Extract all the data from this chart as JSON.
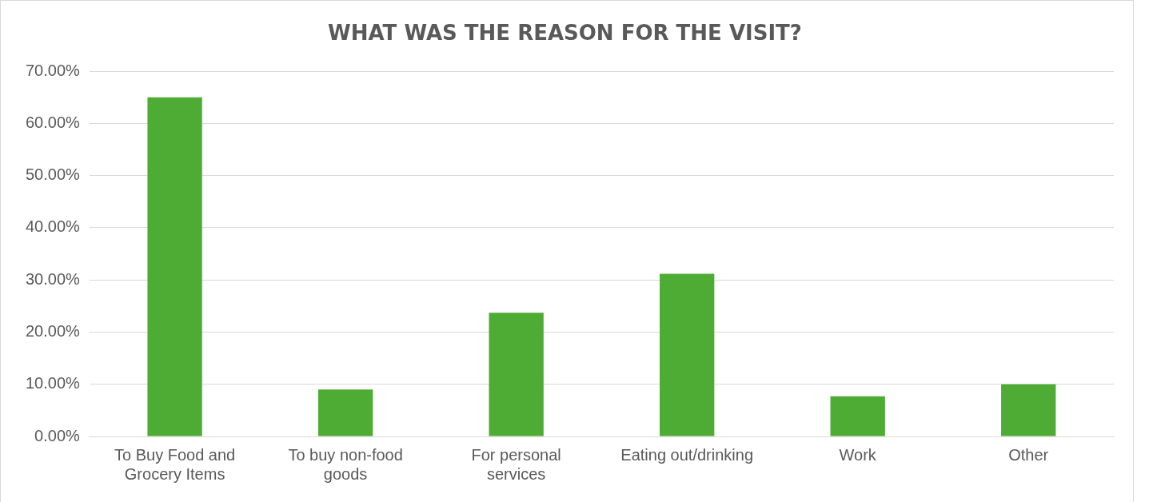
{
  "chart_data": {
    "type": "bar",
    "title": "WHAT WAS THE REASON FOR THE VISIT?",
    "categories": [
      "To Buy Food and Grocery Items",
      "To buy non-food goods",
      "For personal services",
      "Eating out/drinking",
      "Work",
      "Other"
    ],
    "values": [
      65,
      9,
      23.7,
      31.2,
      7.7,
      10
    ],
    "color": "#4eac34",
    "ylim": [
      0,
      70
    ],
    "yticks": [
      {
        "value": 0,
        "label": "0.00%"
      },
      {
        "value": 10,
        "label": "10.00%"
      },
      {
        "value": 20,
        "label": "20.00%"
      },
      {
        "value": 30,
        "label": "30.00%"
      },
      {
        "value": 40,
        "label": "40.00%"
      },
      {
        "value": 50,
        "label": "50.00%"
      },
      {
        "value": 60,
        "label": "60.00%"
      },
      {
        "value": 70,
        "label": "70.00%"
      }
    ],
    "grid": "y"
  }
}
